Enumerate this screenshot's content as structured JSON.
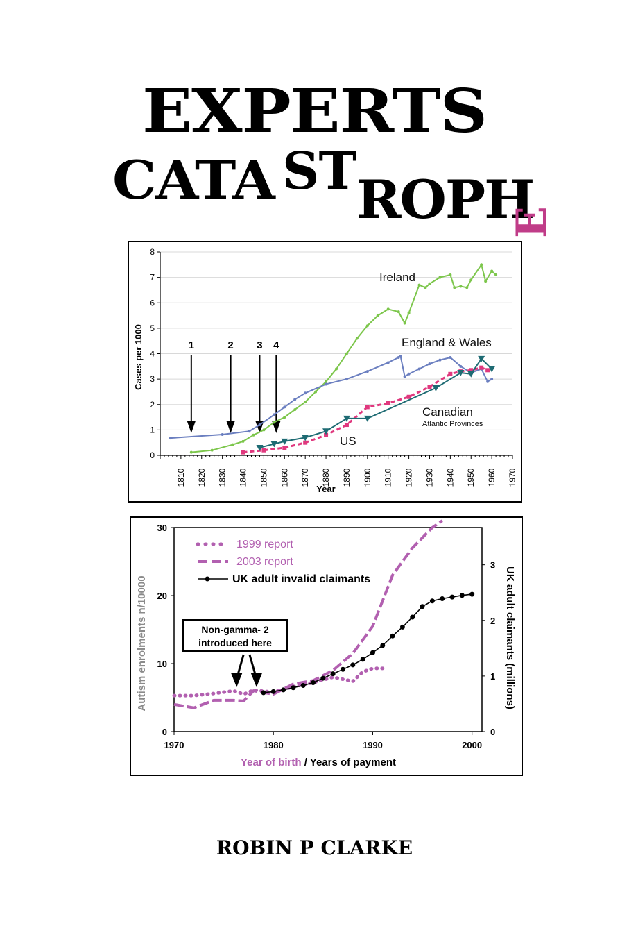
{
  "cover": {
    "title_line1": "EXPERTS",
    "title_cata": "CATA",
    "title_st": "ST",
    "title_roph": "ROPH",
    "title_e": "E",
    "author": "ROBIN P CLARKE"
  },
  "colors": {
    "ireland": "#7cc64b",
    "england": "#6b7fc0",
    "canadian": "#e0387e",
    "us": "#1e6b73",
    "report": "#b260b0",
    "claimants": "#000000"
  },
  "chart_data": [
    {
      "type": "line",
      "xlabel": "Year",
      "ylabel": "Cases per 1000",
      "xlim": [
        1800,
        1970
      ],
      "ylim": [
        0,
        8
      ],
      "x_ticks": [
        "1810",
        "1820",
        "1830",
        "1840",
        "1850",
        "1860",
        "1870",
        "1880",
        "1890",
        "1900",
        "1910",
        "1920",
        "1930",
        "1940",
        "1950",
        "1960",
        "1970"
      ],
      "y_ticks": [
        "0",
        "1",
        "2",
        "3",
        "4",
        "5",
        "6",
        "7",
        "8"
      ],
      "annotations": [
        {
          "label": "1",
          "year": 1815
        },
        {
          "label": "2",
          "year": 1834
        },
        {
          "label": "3",
          "year": 1848
        },
        {
          "label": "4",
          "year": 1856
        }
      ],
      "series": [
        {
          "name": "Ireland",
          "label_sub": "",
          "color_key": "ireland",
          "x": [
            1815,
            1825,
            1835,
            1840,
            1845,
            1850,
            1855,
            1860,
            1865,
            1870,
            1875,
            1880,
            1885,
            1890,
            1895,
            1900,
            1905,
            1910,
            1915,
            1918,
            1920,
            1925,
            1928,
            1930,
            1935,
            1940,
            1942,
            1945,
            1948,
            1950,
            1955,
            1957,
            1960,
            1962
          ],
          "y": [
            0.12,
            0.2,
            0.42,
            0.55,
            0.8,
            1.0,
            1.3,
            1.5,
            1.8,
            2.1,
            2.5,
            2.9,
            3.4,
            4.0,
            4.6,
            5.1,
            5.5,
            5.75,
            5.65,
            5.2,
            5.6,
            6.7,
            6.6,
            6.75,
            7.0,
            7.1,
            6.6,
            6.65,
            6.6,
            6.9,
            7.5,
            6.85,
            7.25,
            7.1
          ]
        },
        {
          "name": "England & Wales",
          "label_sub": "",
          "color_key": "england",
          "x": [
            1805,
            1830,
            1843,
            1848,
            1855,
            1860,
            1865,
            1870,
            1880,
            1890,
            1900,
            1910,
            1915,
            1916,
            1918,
            1920,
            1925,
            1930,
            1935,
            1940,
            1945,
            1950,
            1955,
            1958,
            1960
          ],
          "y": [
            0.68,
            0.82,
            0.95,
            1.2,
            1.6,
            1.9,
            2.2,
            2.45,
            2.8,
            3.0,
            3.3,
            3.65,
            3.85,
            3.9,
            3.1,
            3.2,
            3.4,
            3.6,
            3.75,
            3.85,
            3.5,
            3.25,
            3.4,
            2.9,
            3.0
          ]
        },
        {
          "name": "Canadian",
          "label_sub": "Atlantic Provinces",
          "color_key": "canadian",
          "x": [
            1840,
            1850,
            1860,
            1870,
            1880,
            1890,
            1900,
            1910,
            1920,
            1930,
            1940,
            1945,
            1950,
            1955,
            1958
          ],
          "y": [
            0.12,
            0.2,
            0.3,
            0.5,
            0.8,
            1.2,
            1.9,
            2.05,
            2.3,
            2.7,
            3.2,
            3.3,
            3.35,
            3.45,
            3.35
          ]
        },
        {
          "name": "US",
          "label_sub": "",
          "color_key": "us",
          "x": [
            1848,
            1855,
            1860,
            1870,
            1880,
            1890,
            1900,
            1933,
            1945,
            1950,
            1955,
            1960
          ],
          "y": [
            0.3,
            0.45,
            0.55,
            0.7,
            0.95,
            1.45,
            1.45,
            2.65,
            3.25,
            3.2,
            3.8,
            3.4
          ]
        }
      ]
    },
    {
      "type": "line",
      "xlabel_part1": "Year of birth",
      "xlabel_part2": " / Years of payment",
      "ylabel": "Autism enrolments n/10000",
      "y2label": "UK adult claimants (millions)",
      "xlim": [
        1970,
        2001
      ],
      "ylim": [
        0,
        30
      ],
      "y2lim": [
        0,
        3.67
      ],
      "x_ticks": [
        "1970",
        "1980",
        "1990",
        "2000"
      ],
      "y_ticks": [
        "0",
        "10",
        "20",
        "30"
      ],
      "y2_ticks": [
        "0",
        "1",
        "2",
        "3"
      ],
      "annotation": "Non-gamma-2 introduced here",
      "annotation_line1": "Non-gamma- 2",
      "annotation_line2": "introduced here",
      "annotation_years": [
        1976.3,
        1978.3
      ],
      "series": [
        {
          "name": "1999 report",
          "axis": "left",
          "style": "dotted",
          "color_key": "report",
          "x": [
            1970,
            1972,
            1974,
            1976,
            1977,
            1978,
            1980,
            1982,
            1984,
            1986,
            1988,
            1989,
            1990,
            1991
          ],
          "y": [
            5.3,
            5.3,
            5.6,
            6.0,
            5.5,
            6.1,
            5.8,
            6.6,
            7.2,
            8.0,
            7.4,
            8.8,
            9.3,
            9.3
          ]
        },
        {
          "name": "2003 report",
          "axis": "left",
          "style": "dashed",
          "color_key": "report",
          "x": [
            1970,
            1972,
            1974,
            1976,
            1977,
            1978,
            1980,
            1982,
            1984,
            1986,
            1988,
            1990,
            1992,
            1994,
            1996,
            1997
          ],
          "y": [
            4.0,
            3.5,
            4.6,
            4.6,
            4.5,
            6.0,
            5.5,
            7.0,
            7.5,
            9.0,
            11.5,
            15.5,
            23.0,
            27.0,
            30.0,
            31.0
          ]
        },
        {
          "name": "UK adult invalid claimants",
          "axis": "right",
          "style": "solid-markers",
          "color_key": "claimants",
          "x": [
            1979,
            1980,
            1981,
            1982,
            1983,
            1984,
            1985,
            1986,
            1987,
            1988,
            1989,
            1990,
            1991,
            1992,
            1993,
            1994,
            1995,
            1996,
            1997,
            1998,
            1999,
            2000
          ],
          "y": [
            0.7,
            0.72,
            0.75,
            0.79,
            0.83,
            0.88,
            0.96,
            1.04,
            1.12,
            1.2,
            1.3,
            1.42,
            1.55,
            1.72,
            1.88,
            2.06,
            2.25,
            2.35,
            2.39,
            2.42,
            2.45,
            2.47
          ]
        }
      ]
    }
  ]
}
